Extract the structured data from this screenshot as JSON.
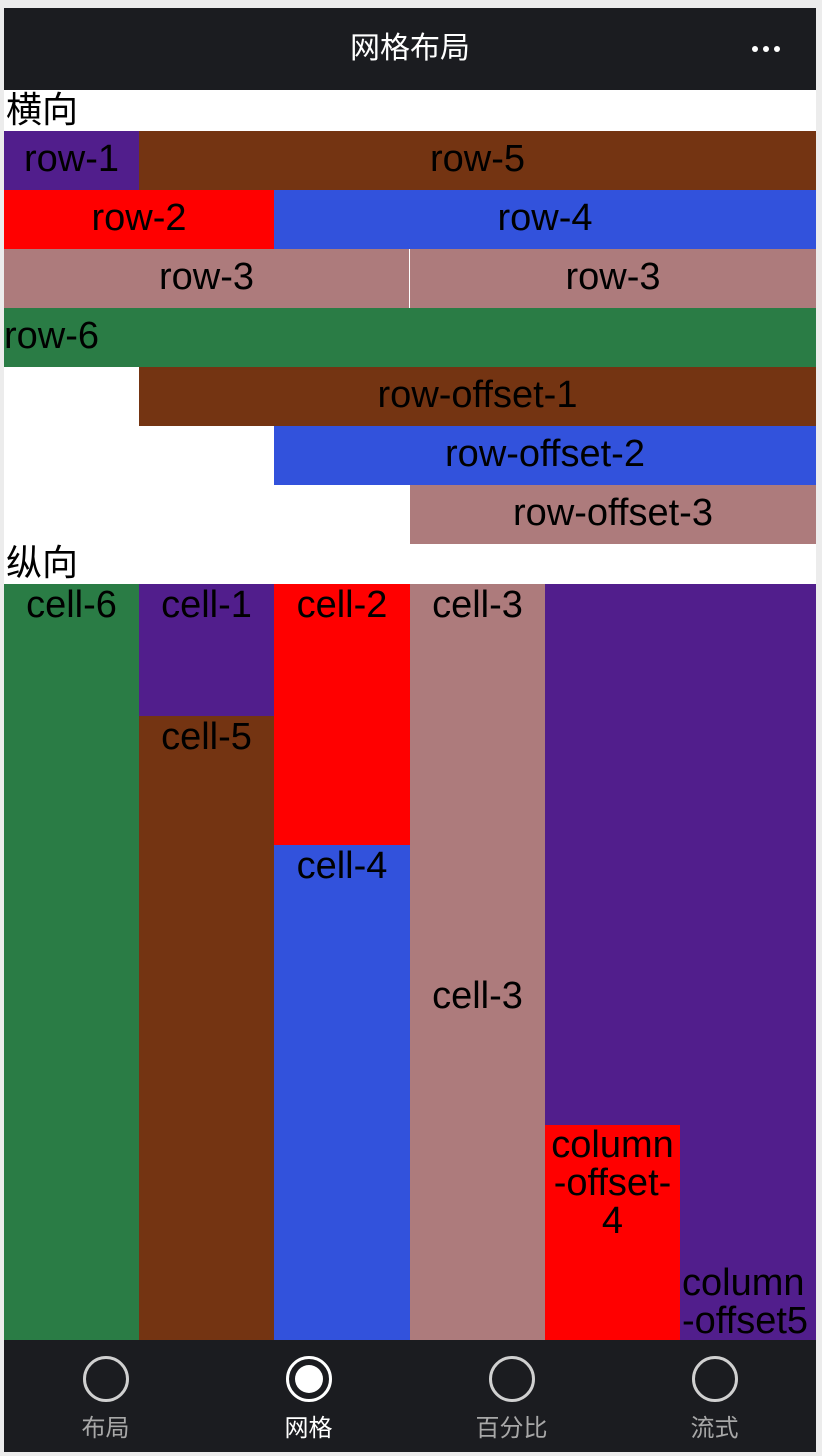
{
  "navbar": {
    "title": "网格布局"
  },
  "sections": {
    "horizontal": "横向",
    "vertical": "纵向"
  },
  "rows": [
    {
      "label": "row-1",
      "color": "#511e8c"
    },
    {
      "label": "row-5",
      "color": "#743412"
    },
    {
      "label": "row-2",
      "color": "#ff0000"
    },
    {
      "label": "row-4",
      "color": "#3252dc"
    },
    {
      "label": "row-3",
      "color": "#ad7b7c"
    },
    {
      "label": "row-3",
      "color": "#ad7b7c"
    },
    {
      "label": "row-6",
      "color": "#2a7c45"
    },
    {
      "label": "row-offset-1",
      "color": "#743412"
    },
    {
      "label": "row-offset-2",
      "color": "#3252dc"
    },
    {
      "label": "row-offset-3",
      "color": "#ad7b7c"
    }
  ],
  "cells": [
    {
      "label": "cell-6",
      "color": "#2a7c45"
    },
    {
      "label": "cell-1",
      "color": "#511e8c"
    },
    {
      "label": "cell-5",
      "color": "#743412"
    },
    {
      "label": "cell-2",
      "color": "#ff0000"
    },
    {
      "label": "cell-4",
      "color": "#3252dc"
    },
    {
      "label": "cell-3",
      "color": "#ad7b7c"
    },
    {
      "label": "cell-3",
      "color": "#ad7b7c"
    },
    {
      "label": "",
      "color": "#511e8c"
    },
    {
      "label": "column-offset-4",
      "color": "#ff0000"
    },
    {
      "label": "",
      "color": "#511e8c"
    },
    {
      "label": "column-offset5",
      "color": "#511e8c"
    }
  ],
  "tabbar": {
    "items": [
      {
        "label": "布局",
        "icon": "circle-icon",
        "active": false
      },
      {
        "label": "网格",
        "icon": "circle-filled-icon",
        "active": true
      },
      {
        "label": "百分比",
        "icon": "circle-icon",
        "active": false
      },
      {
        "label": "流式",
        "icon": "circle-icon",
        "active": false
      }
    ]
  }
}
